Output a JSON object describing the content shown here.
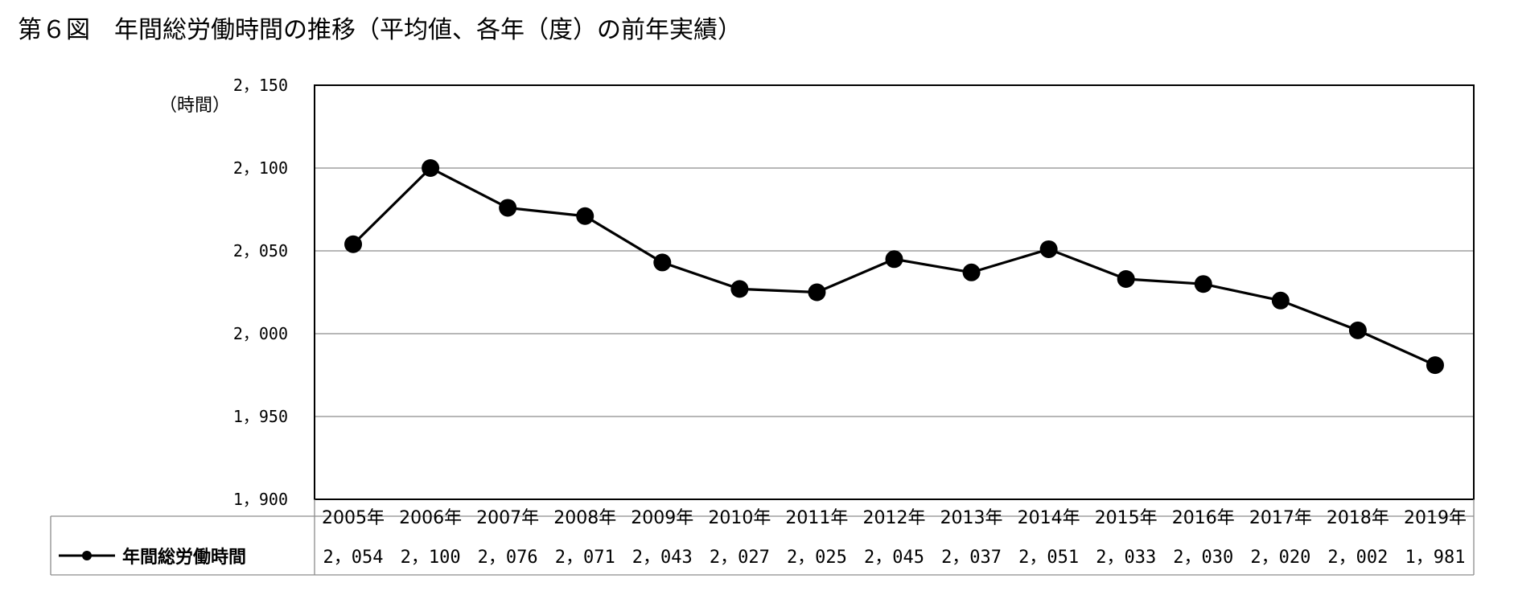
{
  "title": "第６図　年間総労働時間の推移（平均値、各年（度）の前年実績）",
  "chart_data": {
    "type": "line",
    "unit_label": "（時間）",
    "ylim": [
      1900,
      2150
    ],
    "yticks": [
      1900,
      1950,
      2000,
      2050,
      2100,
      2150
    ],
    "ytick_labels": [
      "1，900",
      "1，950",
      "2，000",
      "2，050",
      "2，100",
      "2，150"
    ],
    "grid": true,
    "categories": [
      "2005年",
      "2006年",
      "2007年",
      "2008年",
      "2009年",
      "2010年",
      "2011年",
      "2012年",
      "2013年",
      "2014年",
      "2015年",
      "2016年",
      "2017年",
      "2018年",
      "2019年"
    ],
    "series": [
      {
        "name": "年間総労働時間",
        "values": [
          2054,
          2100,
          2076,
          2071,
          2043,
          2027,
          2025,
          2045,
          2037,
          2051,
          2033,
          2030,
          2020,
          2002,
          1981
        ],
        "value_labels": [
          "2，054",
          "2，100",
          "2，076",
          "2，071",
          "2，043",
          "2，027",
          "2，025",
          "2，045",
          "2，037",
          "2，051",
          "2，033",
          "2，030",
          "2，020",
          "2，002",
          "1，981"
        ],
        "color": "#000000"
      }
    ],
    "legend": "data-table-left"
  }
}
